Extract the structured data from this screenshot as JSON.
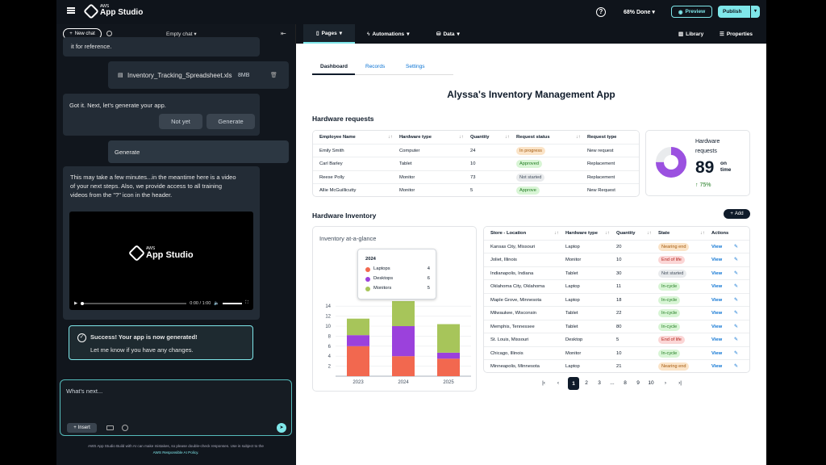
{
  "topbar": {
    "logo_small": "AWS",
    "logo_name": "App Studio",
    "help_icon": "?",
    "progress": "68% Done",
    "preview_label": "Preview",
    "publish_label": "Publish"
  },
  "chat": {
    "new_chat_label": "New chat",
    "title": "Empty chat",
    "msg_partial": "it for reference.",
    "file_name": "Inventory_Tracking_Spreadsheet.xls",
    "file_size": "8MB",
    "msg_generate_prompt": "Got it.  Next, let's generate your app.",
    "not_yet_label": "Not yet",
    "generate_label": "Generate",
    "user_generate": "Generate",
    "msg_wait_1": "This may take a few minutes...in the meantime here is a video",
    "msg_wait_2": "of your next steps. Also, we provide access to all training",
    "msg_wait_3": "videos from the \"?\" icon in the header.",
    "video_logo_small": "AWS",
    "video_logo_name": "App Studio",
    "video_time": "0:00 / 1:00",
    "success_title": "Success! Your app is now generated!",
    "success_sub": "Let me know if you have any changes.",
    "input_placeholder": "What's next...",
    "insert_label": "Insert",
    "disclaimer_1": "AWS App Studio Build with AI can make mistakes, so please double-check responses. Use is subject to the",
    "disclaimer_link": "AWS Responsible AI Policy."
  },
  "nav": {
    "pages": "Pages",
    "automations": "Automations",
    "data": "Data",
    "library": "Library",
    "properties": "Properties"
  },
  "canvas": {
    "tabs": [
      "Dashboard",
      "Records",
      "Settings"
    ],
    "app_title": "Alyssa's Inventory Management App",
    "hw_requests_title": "Hardware requests",
    "hw_inventory_title": "Hardware Inventory",
    "add_label": "Add"
  },
  "requests_table": {
    "headers": [
      "Employee Name",
      "Hardware type",
      "Quantity",
      "Request status",
      "Request type"
    ],
    "rows": [
      {
        "name": "Emily Smith",
        "type": "Computer",
        "qty": "24",
        "status": "In progress",
        "req": "New request"
      },
      {
        "name": "Carl Barley",
        "type": "Tablet",
        "qty": "10",
        "status": "Approved",
        "req": "Replacement"
      },
      {
        "name": "Reese Polly",
        "type": "Monitor",
        "qty": "73",
        "status": "Not started",
        "req": "Replacement"
      },
      {
        "name": "Allie McGuillicutty",
        "type": "Monitor",
        "qty": "5",
        "status": "Approve",
        "req": "New Request"
      }
    ]
  },
  "kpi": {
    "label_1": "Hardware",
    "label_2": "requests",
    "value": "89",
    "unit_1": "on",
    "unit_2": "time",
    "change": "75%",
    "fraction": 0.75,
    "color": "#9b51e0"
  },
  "inventory_table": {
    "headers": [
      "Store - Location",
      "Hardware type",
      "Quantity",
      "State",
      "Actions"
    ],
    "view_label": "View",
    "rows": [
      {
        "loc": "Kansas City, Missouri",
        "type": "Laptop",
        "qty": "20",
        "state": "Nearing end"
      },
      {
        "loc": "Joliet, Illinois",
        "type": "Monitor",
        "qty": "10",
        "state": "End of life"
      },
      {
        "loc": "Indianapolis, Indiana",
        "type": "Tablet",
        "qty": "30",
        "state": "Not started"
      },
      {
        "loc": "Oklahoma City, Oklahoma",
        "type": "Laptop",
        "qty": "11",
        "state": "In-cycle"
      },
      {
        "loc": "Maple Grove, Minnesota",
        "type": "Laptop",
        "qty": "18",
        "state": "In-cycle"
      },
      {
        "loc": "Milwaukee, Wisconsin",
        "type": "Tablet",
        "qty": "22",
        "state": "In-cycle"
      },
      {
        "loc": "Memphis, Tennessee",
        "type": "Tablet",
        "qty": "80",
        "state": "In-cycle"
      },
      {
        "loc": "St. Louis, Missouri",
        "type": "Desktop",
        "qty": "5",
        "state": "End of life"
      },
      {
        "loc": "Chicago, Illinois",
        "type": "Monitor",
        "qty": "10",
        "state": "In-cycle"
      },
      {
        "loc": "Minneapolis, Minnesota",
        "type": "Laptop",
        "qty": "21",
        "state": "Nearing end"
      }
    ]
  },
  "pagination": {
    "pages": [
      "1",
      "2",
      "3",
      "...",
      "8",
      "9",
      "10"
    ],
    "current": "1"
  },
  "chart_data": {
    "type": "bar",
    "title": "Inventory at-a-glance",
    "categories": [
      "2023",
      "2024",
      "2025"
    ],
    "series": [
      {
        "name": "Laptops",
        "color": "#f2684f",
        "values": [
          6,
          4,
          3.5
        ]
      },
      {
        "name": "Desktops",
        "color": "#9b41dc",
        "values": [
          2.2,
          6,
          1.2
        ]
      },
      {
        "name": "Monitors",
        "color": "#a7c55a",
        "values": [
          3.3,
          5,
          5.7
        ]
      }
    ],
    "yticks": [
      "2",
      "4",
      "6",
      "8",
      "10",
      "12",
      "14"
    ],
    "ylim": [
      0,
      15
    ],
    "tooltip": {
      "title": "2024",
      "rows": [
        {
          "name": "Laptops",
          "value": "4"
        },
        {
          "name": "Desktops",
          "value": "6"
        },
        {
          "name": "Monitors",
          "value": "5"
        }
      ]
    }
  }
}
